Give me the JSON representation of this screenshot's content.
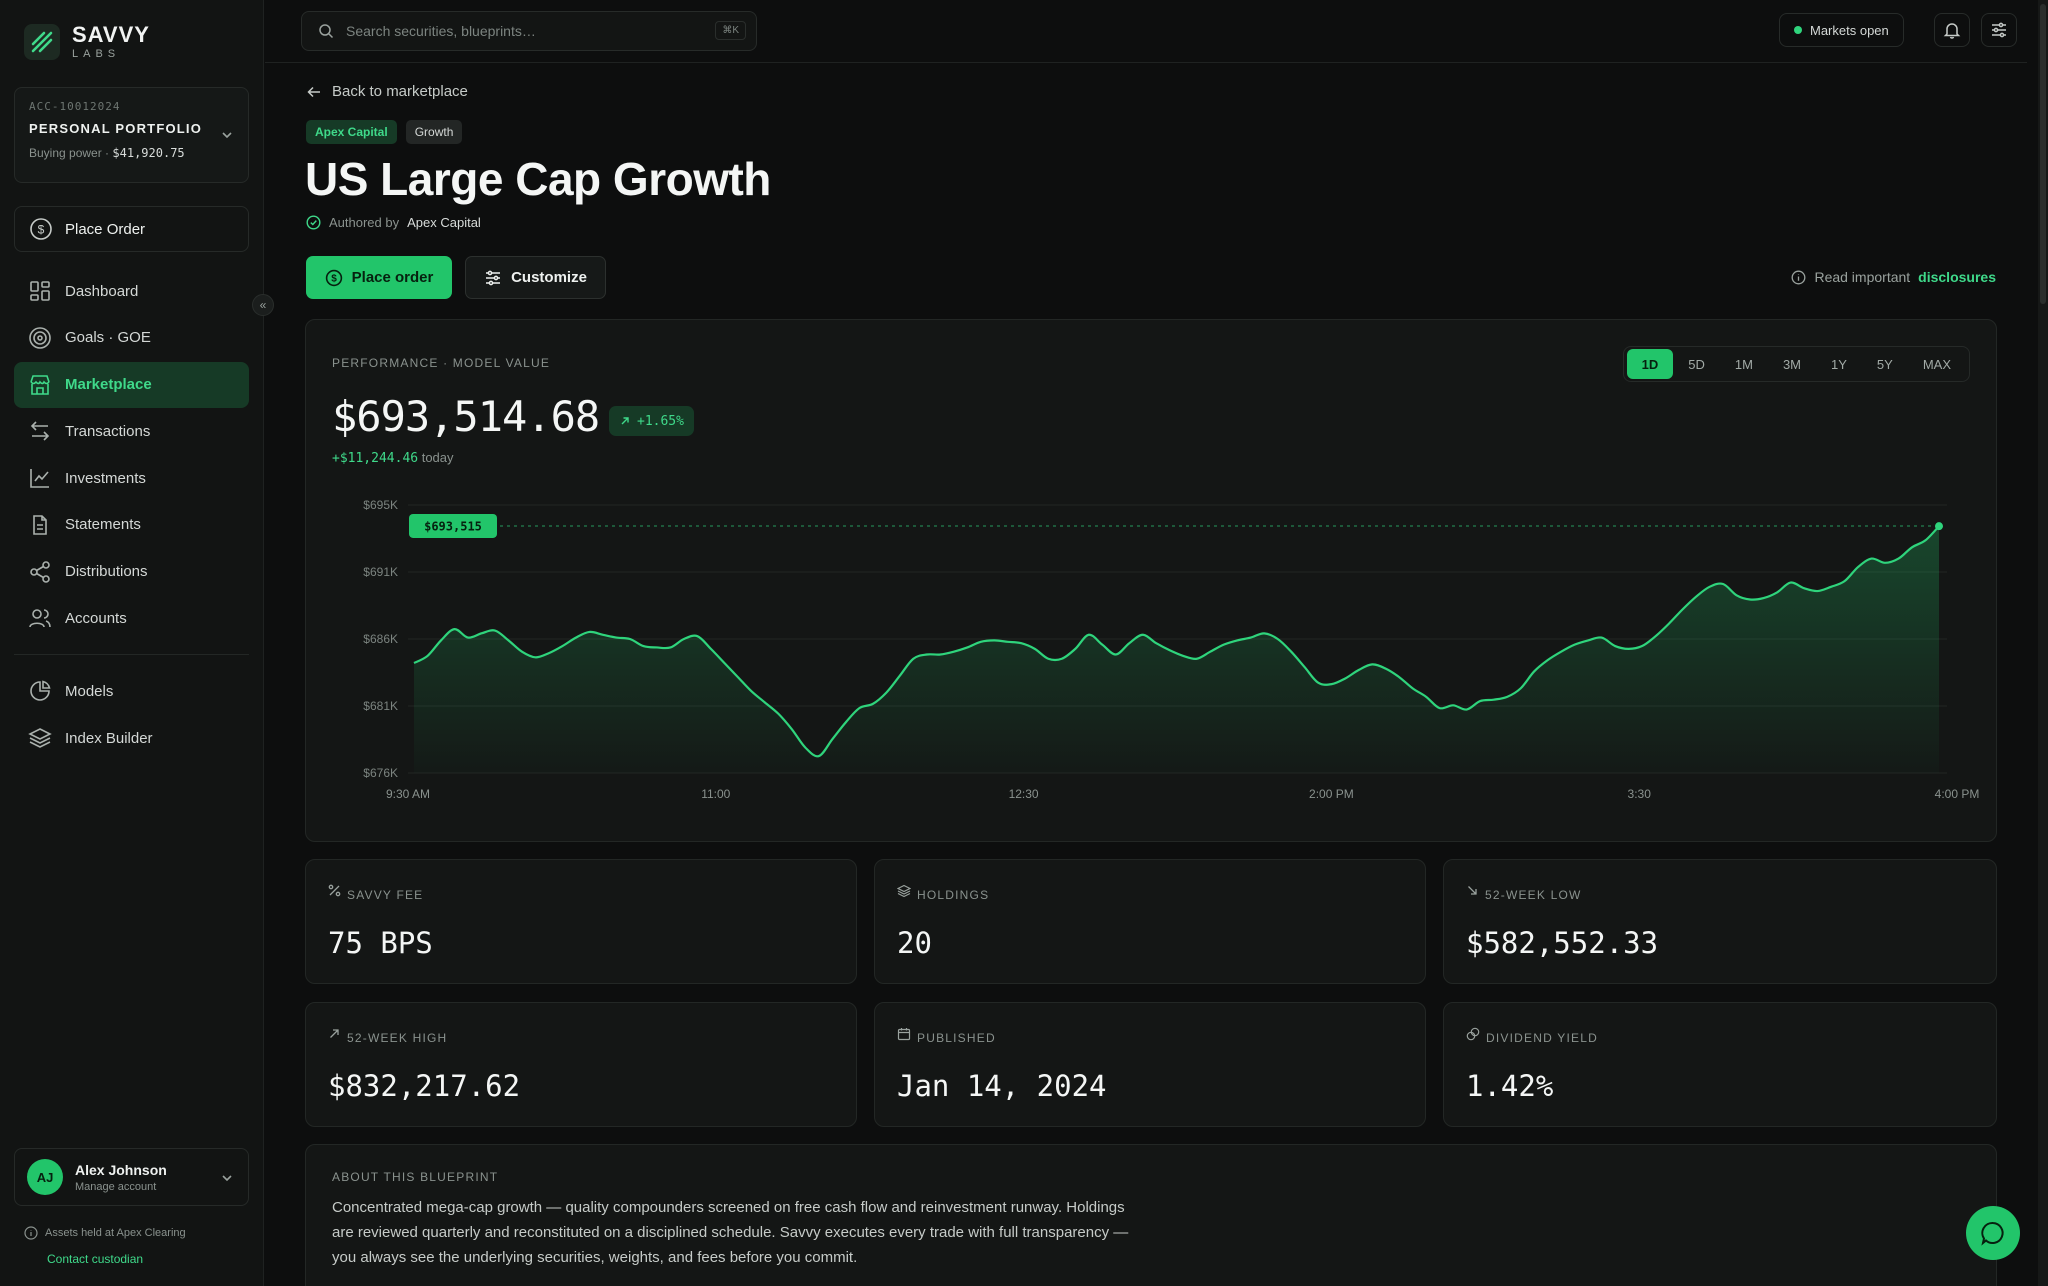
{
  "brand": {
    "name": "SAVVY",
    "sub": "LABS"
  },
  "account": {
    "id": "ACC-10012024",
    "name": "PERSONAL PORTFOLIO",
    "buying_power_label": "Buying power ·",
    "buying_power": "$41,920.75"
  },
  "sidebar": {
    "order_label": "Place Order",
    "items": [
      {
        "label": "Dashboard",
        "icon": "dashboard-icon"
      },
      {
        "label": "Goals · GOE",
        "icon": "target-icon"
      },
      {
        "label": "Marketplace",
        "icon": "store-icon",
        "active": true
      },
      {
        "label": "Transactions",
        "icon": "transfer-icon"
      },
      {
        "label": "Investments",
        "icon": "chart-line-icon"
      },
      {
        "label": "Statements",
        "icon": "document-icon"
      },
      {
        "label": "Distributions",
        "icon": "share-icon"
      },
      {
        "label": "Accounts",
        "icon": "users-icon"
      }
    ],
    "items2": [
      {
        "label": "Models",
        "icon": "pie-icon"
      },
      {
        "label": "Index Builder",
        "icon": "layers-icon"
      }
    ],
    "collapse_glyph": "«"
  },
  "user": {
    "initials": "AJ",
    "name": "Alex Johnson",
    "sub": "Manage account"
  },
  "custody": {
    "text": "Assets held at Apex Clearing",
    "link": "Contact custodian"
  },
  "topbar": {
    "search_placeholder": "Search securities, blueprints…",
    "shortcut": "⌘K",
    "market_status": "Markets open"
  },
  "page": {
    "back_label": "Back to marketplace",
    "tags": [
      "Apex Capital",
      "Growth"
    ],
    "title": "US Large Cap Growth",
    "author_prefix": "Authored by",
    "author": "Apex Capital",
    "primary_btn": "Place order",
    "secondary_btn": "Customize",
    "disclosure_prefix": "Read important",
    "disclosure_link": "disclosures"
  },
  "performance": {
    "label": "PERFORMANCE · MODEL VALUE",
    "value": "$693,514.68",
    "change_pct": "+1.65%",
    "change_abs": "+$11,244.46",
    "change_suffix": "today",
    "ranges": [
      "1D",
      "5D",
      "1M",
      "3M",
      "1Y",
      "5Y",
      "MAX"
    ],
    "active_range": "1D"
  },
  "chart_data": {
    "type": "area",
    "y_ticks": [
      "$695K",
      "$691K",
      "$686K",
      "$681K",
      "$676K"
    ],
    "x_ticks": [
      "9:30 AM",
      "11:00",
      "12:30",
      "2:00 PM",
      "3:30",
      "4:00 PM"
    ],
    "ylim": [
      676,
      695
    ],
    "current_label": "$693,515",
    "current_value": 693.515,
    "values": [
      683.8,
      684.3,
      685.4,
      686.2,
      685.6,
      685.9,
      686.1,
      685.4,
      684.6,
      684.2,
      684.5,
      685.0,
      685.6,
      686.0,
      685.8,
      685.6,
      685.5,
      685.0,
      684.9,
      684.9,
      685.5,
      685.7,
      684.8,
      683.8,
      682.8,
      681.8,
      681.0,
      680.2,
      679.1,
      677.8,
      677.2,
      678.4,
      679.6,
      680.6,
      680.9,
      681.7,
      682.9,
      684.1,
      684.4,
      684.4,
      684.6,
      684.9,
      685.3,
      685.4,
      685.3,
      685.2,
      684.8,
      684.1,
      684.1,
      684.8,
      685.8,
      685.1,
      684.4,
      685.2,
      685.8,
      685.2,
      684.7,
      684.3,
      684.1,
      684.6,
      685.1,
      685.4,
      685.6,
      685.9,
      685.5,
      684.6,
      683.5,
      682.4,
      682.3,
      682.7,
      683.3,
      683.7,
      683.4,
      682.8,
      682.0,
      681.4,
      680.6,
      680.8,
      680.5,
      681.1,
      681.2,
      681.4,
      682.0,
      683.2,
      684.0,
      684.6,
      685.1,
      685.4,
      685.6,
      685.0,
      684.8,
      685.0,
      685.7,
      686.6,
      687.6,
      688.5,
      689.2,
      689.4,
      688.6,
      688.3,
      688.4,
      688.8,
      689.5,
      689.1,
      688.9,
      689.2,
      689.6,
      690.6,
      691.2,
      690.9,
      691.2,
      692.0,
      692.5,
      693.5
    ]
  },
  "stats": [
    {
      "label": "SAVVY FEE",
      "value": "75 BPS",
      "icon": "percent-icon"
    },
    {
      "label": "HOLDINGS",
      "value": "20",
      "icon": "layers-icon"
    },
    {
      "label": "52-WEEK LOW",
      "value": "$582,552.33",
      "icon": "arrow-down-right-icon"
    },
    {
      "label": "52-WEEK HIGH",
      "value": "$832,217.62",
      "icon": "arrow-up-right-icon"
    },
    {
      "label": "PUBLISHED",
      "value": "Jan 14, 2024",
      "icon": "calendar-icon"
    },
    {
      "label": "DIVIDEND YIELD",
      "value": "1.42%",
      "icon": "coins-icon"
    }
  ],
  "about": {
    "label": "ABOUT THIS BLUEPRINT",
    "text": "Concentrated mega-cap growth — quality compounders screened on free cash flow and reinvestment runway. Holdings are reviewed quarterly and reconstituted on a disciplined schedule. Savvy executes every trade with full transparency — you always see the underlying securities, weights, and fees before you commit."
  },
  "colors": {
    "accent": "#22c56a",
    "accent_text": "#3fd98a",
    "bg": "#0d0e0e",
    "panel": "#141615"
  }
}
